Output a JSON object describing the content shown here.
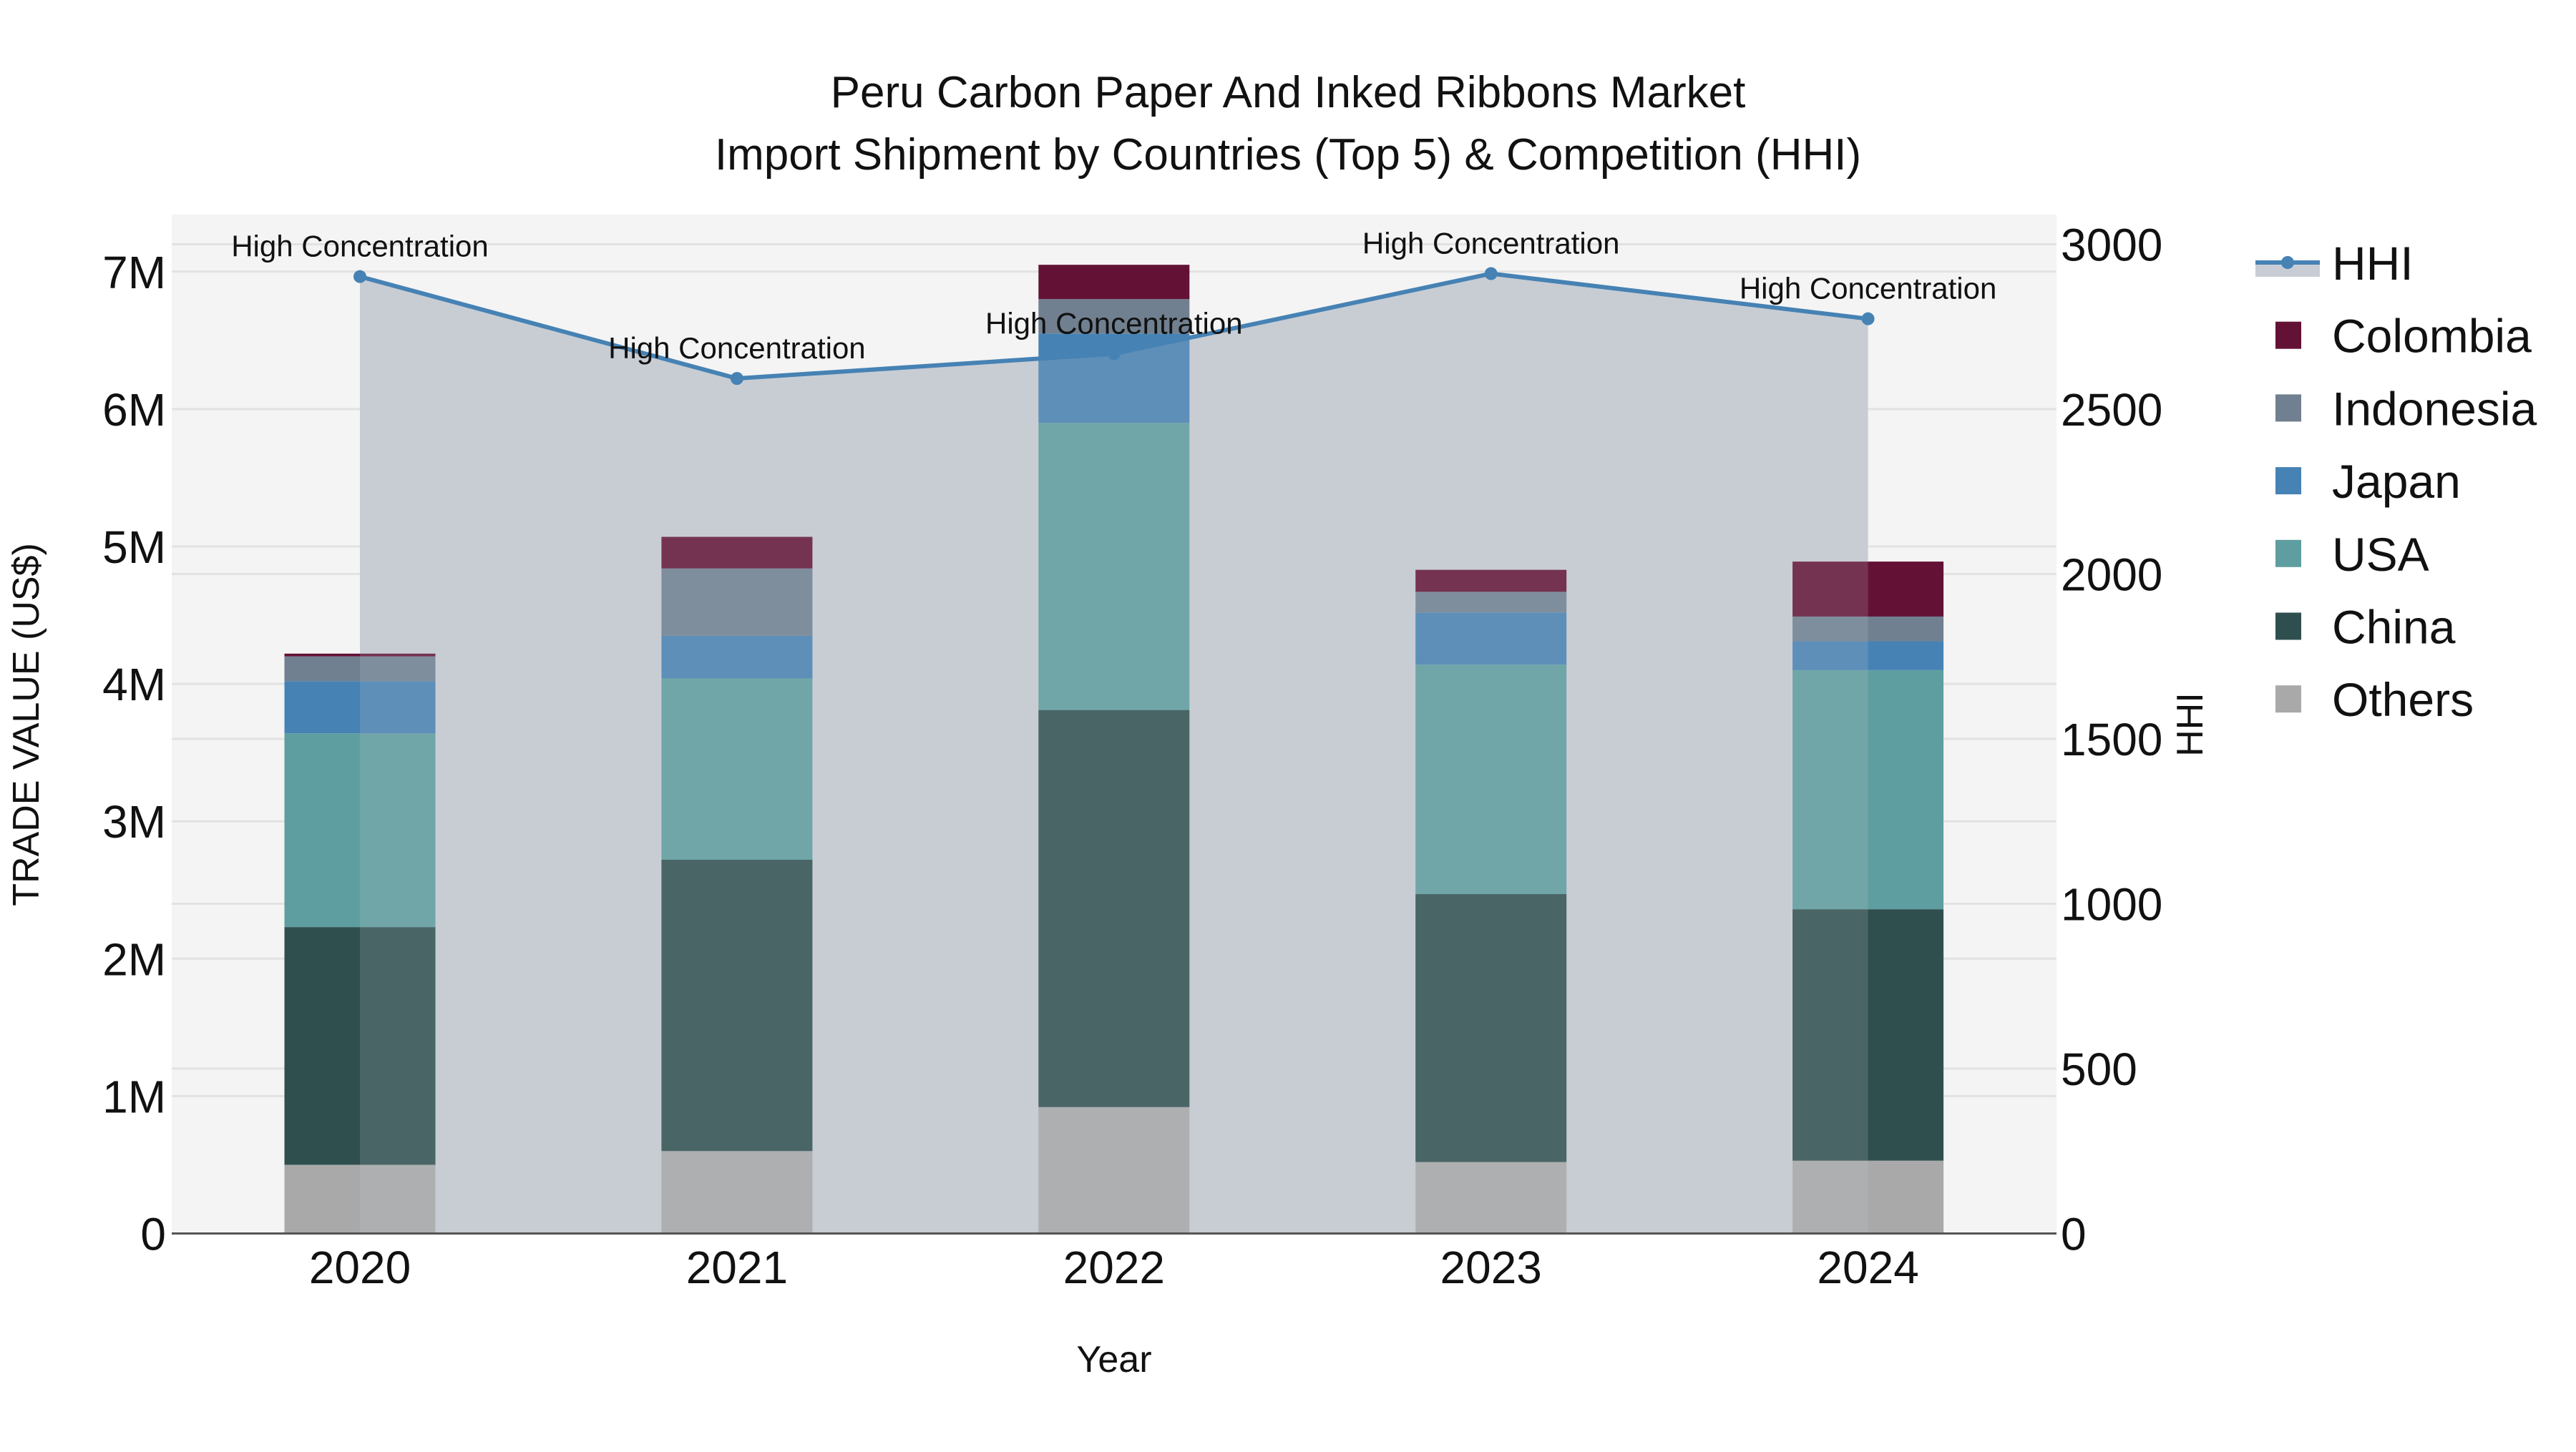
{
  "title": {
    "line1": "Peru Carbon Paper And Inked Ribbons Market",
    "line2": "Import Shipment by Countries (Top 5) & Competition (HHI)"
  },
  "axes": {
    "x_title": "Year",
    "y_left_title": "TRADE VALUE (US$)",
    "y_right_title": "HHI",
    "y_left_ticks": [
      "0",
      "1M",
      "2M",
      "3M",
      "4M",
      "5M",
      "6M",
      "7M"
    ],
    "y_right_ticks": [
      "0",
      "500",
      "1000",
      "1500",
      "2000",
      "2500",
      "3000"
    ]
  },
  "legend": {
    "items": [
      {
        "label": "HHI",
        "type": "line",
        "color": "#4682b4"
      },
      {
        "label": "Colombia",
        "type": "box",
        "color": "#631236"
      },
      {
        "label": "Indonesia",
        "type": "box",
        "color": "#708090"
      },
      {
        "label": "Japan",
        "type": "box",
        "color": "#4682b4"
      },
      {
        "label": "USA",
        "type": "box",
        "color": "#5f9ea0"
      },
      {
        "label": "China",
        "type": "box",
        "color": "#2f4f4f"
      },
      {
        "label": "Others",
        "type": "box",
        "color": "#a9a9a9"
      }
    ]
  },
  "colors": {
    "plot_bg": "#f4f4f4",
    "grid": "#e2e2e2",
    "hhi_area": "#c8cdd5",
    "hhi_line": "#4682b4",
    "axis_line": "#555555"
  },
  "chart_data": {
    "type": "bar",
    "stacked": true,
    "title": "Peru Carbon Paper And Inked Ribbons Market — Import Shipment by Countries (Top 5) & Competition (HHI)",
    "xlabel": "Year",
    "ylabel": "TRADE VALUE (US$)",
    "y2label": "HHI",
    "categories": [
      "2020",
      "2021",
      "2022",
      "2023",
      "2024"
    ],
    "ylim": [
      0,
      7400000
    ],
    "y2lim": [
      0,
      3090
    ],
    "series": [
      {
        "name": "Others",
        "color": "#a9a9a9",
        "values": [
          500000,
          600000,
          920000,
          520000,
          530000
        ]
      },
      {
        "name": "China",
        "color": "#2f4f4f",
        "values": [
          1730000,
          2120000,
          2890000,
          1950000,
          1830000
        ]
      },
      {
        "name": "USA",
        "color": "#5f9ea0",
        "values": [
          1410000,
          1320000,
          2090000,
          1670000,
          1740000
        ]
      },
      {
        "name": "Japan",
        "color": "#4682b4",
        "values": [
          380000,
          310000,
          650000,
          380000,
          210000
        ]
      },
      {
        "name": "Indonesia",
        "color": "#708090",
        "values": [
          180000,
          490000,
          250000,
          150000,
          180000
        ]
      },
      {
        "name": "Colombia",
        "color": "#631236",
        "values": [
          20000,
          230000,
          250000,
          160000,
          400000
        ]
      }
    ],
    "line_series": {
      "name": "HHI",
      "axis": "right",
      "type": "line+area",
      "color": "#4682b4",
      "values": [
        2902,
        2593,
        2668,
        2911,
        2774
      ],
      "annotations": [
        "High Concentration",
        "High Concentration",
        "High Concentration",
        "High Concentration",
        "High Concentration"
      ]
    },
    "legend_position": "right",
    "grid": true
  }
}
